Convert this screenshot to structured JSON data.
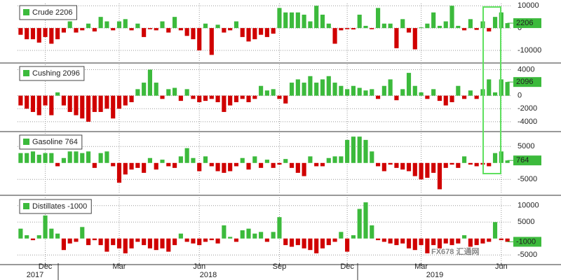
{
  "chart_data": [
    {
      "type": "bar",
      "ylim": [
        -15000,
        11000
      ],
      "yticks": [
        -10000,
        0,
        10000
      ],
      "grid": true,
      "series": [
        {
          "name": "Crude 2206",
          "color": "#3cba3c",
          "negative_color": "#d00000",
          "values": [
            -3000,
            -5000,
            -5000,
            -6500,
            -4000,
            -7000,
            -5000,
            -2000,
            3000,
            -2000,
            -1000,
            2000,
            -1500,
            5000,
            3000,
            -1000,
            3000,
            4000,
            -1000,
            2000,
            -4000,
            -500,
            -1000,
            3000,
            -2000,
            5000,
            -1000,
            -3500,
            -5000,
            -10000,
            2000,
            -12000,
            1500,
            -2000,
            -1000,
            3000,
            -4000,
            -6000,
            -5000,
            -3000,
            -4000,
            -2500,
            9000,
            7000,
            7000,
            7000,
            6000,
            3000,
            10000,
            6000,
            2000,
            -7000,
            -1000,
            -500,
            -600,
            6000,
            1000,
            -500,
            9000,
            2000,
            2000,
            -9000,
            4000,
            -2000,
            -9500,
            300,
            2000,
            7000,
            1000,
            3000,
            10000,
            1000,
            -1000,
            4000,
            -800,
            3000,
            -1500,
            5000,
            7000,
            2206
          ]
        }
      ]
    },
    {
      "type": "bar",
      "ylim": [
        -5300,
        4800
      ],
      "yticks": [
        -4000,
        -2000,
        0,
        4000
      ],
      "grid": true,
      "series": [
        {
          "name": "Cushing 2096",
          "color": "#3cba3c",
          "negative_color": "#d00000",
          "values": [
            -1500,
            -2000,
            -2500,
            -3000,
            -1500,
            -3000,
            500,
            -1500,
            -2500,
            -3000,
            -3500,
            -4000,
            -2500,
            -2500,
            -2000,
            -3500,
            -2000,
            -1500,
            -1000,
            1000,
            2000,
            4000,
            2000,
            -500,
            1000,
            1200,
            -800,
            1000,
            -500,
            -1000,
            -800,
            -500,
            -1000,
            -2500,
            -1500,
            -1000,
            -500,
            -1000,
            -500,
            1500,
            800,
            1000,
            -500,
            -1200,
            2000,
            2500,
            2000,
            3000,
            2000,
            2500,
            3000,
            2000,
            1500,
            1000,
            1500,
            1200,
            800,
            1000,
            -500,
            1500,
            2500,
            -700,
            1000,
            3500,
            1500,
            500,
            -500,
            1000,
            -800,
            -1500,
            -1000,
            1500,
            -500,
            800,
            -500,
            1000,
            2500,
            500,
            2500,
            2096
          ]
        }
      ]
    },
    {
      "type": "bar",
      "ylim": [
        -9400,
        9100
      ],
      "yticks": [
        -5000,
        5000
      ],
      "grid": true,
      "series": [
        {
          "name": "Gasoline 764",
          "color": "#3cba3c",
          "negative_color": "#d00000",
          "values": [
            3000,
            3000,
            3500,
            2500,
            3000,
            3000,
            -1000,
            1500,
            3500,
            3500,
            3000,
            3500,
            -1500,
            3000,
            3500,
            -1000,
            -6000,
            -3500,
            -2000,
            -1500,
            -3000,
            1500,
            -2000,
            1000,
            -1000,
            -1500,
            2000,
            4500,
            1500,
            -2500,
            2000,
            -1000,
            -2500,
            -3000,
            -2500,
            -1000,
            1500,
            -2000,
            2000,
            -1500,
            1000,
            -1500,
            -500,
            1200,
            -1500,
            -3000,
            -4000,
            2000,
            -1000,
            -1000,
            1500,
            2000,
            2000,
            7000,
            8000,
            8000,
            7000,
            3500,
            -1000,
            -2500,
            -500,
            -1500,
            -2000,
            -2500,
            -4000,
            -5000,
            -4500,
            -3000,
            -8000,
            -1500,
            -500,
            -1500,
            2000,
            -500,
            -1000,
            -500,
            -1000,
            3000,
            3500,
            764
          ]
        }
      ]
    },
    {
      "type": "bar",
      "ylim": [
        -7500,
        12500
      ],
      "yticks": [
        -5000,
        5000,
        10000
      ],
      "grid": true,
      "categories": [
        null,
        null,
        null,
        null,
        "Dec",
        null,
        null,
        null,
        null,
        null,
        null,
        null,
        null,
        null,
        null,
        null,
        "Mar",
        null,
        null,
        null,
        null,
        null,
        null,
        null,
        null,
        null,
        null,
        null,
        null,
        "Jun",
        null,
        null,
        null,
        null,
        null,
        null,
        null,
        null,
        null,
        null,
        null,
        null,
        "Sep",
        null,
        null,
        null,
        null,
        null,
        null,
        null,
        null,
        null,
        null,
        "Dec",
        null,
        null,
        null,
        null,
        null,
        null,
        null,
        null,
        null,
        null,
        null,
        "Mar",
        null,
        null,
        null,
        null,
        null,
        null,
        null,
        null,
        null,
        null,
        null,
        null,
        "Jun",
        null
      ],
      "years": [
        "2017",
        "2018",
        "2019"
      ],
      "series": [
        {
          "name": "Distillates -1000",
          "color": "#3cba3c",
          "negative_color": "#d00000",
          "values": [
            3000,
            1000,
            -500,
            1000,
            7000,
            3000,
            1500,
            -3500,
            -1500,
            -1000,
            3500,
            -2000,
            -500,
            -2000,
            -4000,
            -2000,
            -3000,
            -4500,
            -3000,
            -1000,
            -2000,
            -3000,
            -3500,
            -3000,
            -4000,
            -2000,
            1500,
            -1000,
            -1500,
            -2000,
            -1000,
            -500,
            -1500,
            4000,
            500,
            -1000,
            2500,
            3000,
            1500,
            2000,
            -1000,
            2000,
            6500,
            -2000,
            -2500,
            -2000,
            -3000,
            -3500,
            -4500,
            -3000,
            -2000,
            -1000,
            2000,
            -4000,
            1000,
            9000,
            11000,
            4000,
            -500,
            -1000,
            -1500,
            -2000,
            -1500,
            -3000,
            -3500,
            -2000,
            -4500,
            -2000,
            -3000,
            -1500,
            -2000,
            -1500,
            1000,
            -2500,
            -2000,
            -1500,
            -1000,
            5000,
            -500,
            -1000
          ]
        }
      ]
    }
  ],
  "watermark": "FX678 汇通网"
}
